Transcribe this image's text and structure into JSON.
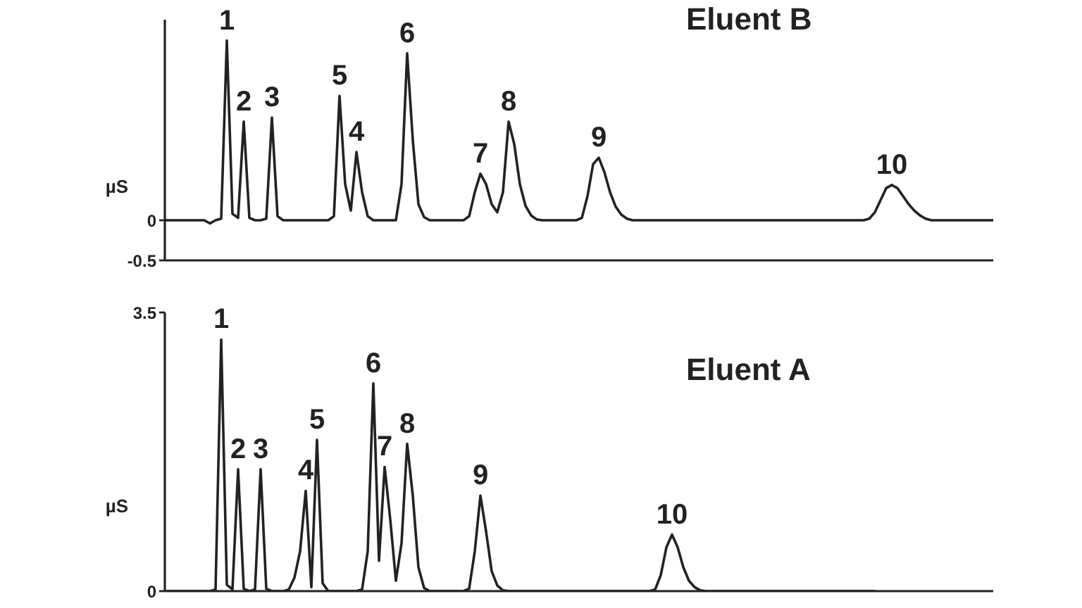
{
  "chart_data": [
    {
      "type": "line",
      "title": "Eluent B",
      "ylabel": "µS",
      "categories": [
        null,
        null,
        null,
        null,
        null,
        null,
        null,
        null,
        null,
        null,
        null,
        null,
        null,
        null,
        null,
        null,
        null,
        null,
        null,
        null,
        null,
        null,
        null,
        null,
        null,
        null,
        null,
        null,
        null,
        null,
        null,
        null,
        null,
        null,
        null,
        null,
        null,
        null,
        null,
        null,
        null,
        null,
        null,
        null,
        null,
        null,
        null,
        null,
        null,
        null,
        null,
        null,
        null,
        null,
        null,
        null,
        null,
        null,
        null,
        null,
        null,
        null,
        null,
        null,
        null,
        null,
        null,
        null,
        null,
        null,
        null,
        null,
        null,
        null,
        null,
        null,
        null,
        null,
        null,
        null,
        null,
        null,
        null,
        null,
        null,
        null,
        null,
        null,
        null,
        null,
        null,
        null,
        null,
        null,
        null,
        null,
        null,
        null,
        null,
        null,
        null,
        null,
        null,
        null,
        null,
        null,
        null,
        null,
        null,
        null,
        null,
        null,
        null,
        null,
        null,
        null,
        null,
        null,
        null,
        null,
        null,
        null,
        null,
        null,
        null,
        null,
        null,
        null,
        null,
        null,
        null,
        null,
        null,
        null,
        null,
        null,
        null,
        null,
        null,
        null,
        null,
        null,
        null,
        null,
        null,
        null,
        null,
        null
      ],
      "series": [
        {
          "color": "#222222",
          "values": [
            0,
            0,
            0,
            0,
            0,
            0,
            0,
            0,
            -0.04,
            0,
            0.02,
            2.24,
            0.08,
            0.03,
            1.23,
            0.03,
            0,
            0,
            0.02,
            1.28,
            0.05,
            0,
            0,
            0,
            0,
            0,
            0,
            0,
            0,
            0,
            0.05,
            1.55,
            0.45,
            0.12,
            0.85,
            0.35,
            0.05,
            0,
            0,
            0,
            0,
            0,
            0.45,
            2.08,
            1.0,
            0.2,
            0.04,
            0,
            0,
            0,
            0,
            0,
            0,
            0,
            0.05,
            0.35,
            0.58,
            0.45,
            0.2,
            0.1,
            0.35,
            1.23,
            0.95,
            0.45,
            0.18,
            0.06,
            0.01,
            0,
            0,
            0,
            0,
            0,
            0,
            0,
            0.03,
            0.3,
            0.7,
            0.78,
            0.6,
            0.35,
            0.17,
            0.07,
            0.02,
            0,
            0,
            0,
            0,
            0,
            0,
            0,
            0,
            0,
            0,
            0,
            0,
            0,
            0,
            0,
            0,
            0,
            0,
            0,
            0,
            0,
            0,
            0,
            0,
            0,
            0,
            0,
            0,
            0,
            0,
            0,
            0,
            0,
            0,
            0,
            0,
            0,
            0,
            0,
            0,
            0,
            0,
            0.02,
            0.1,
            0.25,
            0.4,
            0.44,
            0.4,
            0.3,
            0.2,
            0.12,
            0.06,
            0.02,
            0,
            0,
            0,
            0,
            0,
            0,
            0,
            0,
            0,
            0,
            0,
            0
          ]
        }
      ],
      "annotations": [
        {
          "text": "1",
          "y": 2.24
        },
        {
          "text": "2",
          "y": 1.23
        },
        {
          "text": "3",
          "y": 1.28
        },
        {
          "text": "5",
          "y": 1.55
        },
        {
          "text": "4",
          "y": 0.85
        },
        {
          "text": "6",
          "y": 2.08
        },
        {
          "text": "7",
          "y": 0.58
        },
        {
          "text": "8",
          "y": 1.23
        },
        {
          "text": "9",
          "y": 0.78
        },
        {
          "text": "10",
          "y": 0.44
        }
      ],
      "ylim": [
        -0.5,
        2.5
      ],
      "yticks": [
        -0.5,
        0
      ],
      "tick_labels": "y"
    },
    {
      "type": "line",
      "title": "Eluent A",
      "ylabel": "µS",
      "categories": [
        null,
        null,
        null,
        null,
        null,
        null,
        null,
        null,
        null,
        null,
        null,
        null,
        null,
        null,
        null,
        null,
        null,
        null,
        null,
        null,
        null,
        null,
        null,
        null,
        null,
        null,
        null,
        null,
        null,
        null,
        null,
        null,
        null,
        null,
        null,
        null,
        null,
        null,
        null,
        null,
        null,
        null,
        null,
        null,
        null,
        null,
        null,
        null,
        null,
        null,
        null,
        null,
        null,
        null,
        null,
        null,
        null,
        null,
        null,
        null,
        null,
        null,
        null,
        null,
        null,
        null,
        null,
        null,
        null,
        null,
        null,
        null,
        null,
        null,
        null,
        null,
        null,
        null,
        null,
        null,
        null,
        null,
        null,
        null,
        null,
        null,
        null,
        null,
        null,
        null,
        null,
        null,
        null,
        null,
        null,
        null,
        null,
        null,
        null,
        null,
        null,
        null,
        null,
        null,
        null,
        null,
        null,
        null,
        null,
        null,
        null,
        null,
        null,
        null,
        null,
        null,
        null,
        null,
        null,
        null,
        null,
        null,
        null,
        null,
        null,
        null,
        null,
        null,
        null,
        null,
        null,
        null,
        null,
        null,
        null,
        null,
        null,
        null,
        null,
        null,
        null,
        null,
        null,
        null,
        null,
        null,
        null,
        null
      ],
      "series": [
        {
          "color": "#222222",
          "values": [
            0,
            0,
            0,
            0,
            0,
            0,
            0,
            0,
            0,
            0.02,
            3.16,
            0.08,
            0.02,
            1.53,
            0.03,
            0,
            0.02,
            1.53,
            0.03,
            0,
            0,
            0,
            0.02,
            0.17,
            0.5,
            1.26,
            0.05,
            1.9,
            0.1,
            0,
            0,
            0,
            0,
            0,
            0,
            0.02,
            0.5,
            2.61,
            0.38,
            1.56,
            0.9,
            0.13,
            0.6,
            1.85,
            1.2,
            0.3,
            0.04,
            0,
            0,
            0,
            0,
            0,
            0,
            0,
            0.03,
            0.5,
            1.2,
            0.75,
            0.25,
            0.07,
            0.01,
            0,
            0,
            0,
            0,
            0,
            0,
            0,
            0,
            0,
            0,
            0,
            0,
            0,
            0,
            0,
            0,
            0,
            0,
            0,
            0,
            0,
            0,
            0,
            0,
            0,
            0,
            0.02,
            0.2,
            0.55,
            0.71,
            0.55,
            0.3,
            0.13,
            0.05,
            0.01,
            0,
            0,
            0,
            0,
            0,
            0,
            0,
            0,
            0,
            0,
            0,
            0,
            0,
            0,
            0,
            0,
            0,
            0,
            0,
            0,
            0,
            0,
            0,
            0,
            0,
            0,
            0,
            0,
            0,
            0,
            0,
            null,
            null,
            null,
            null,
            null,
            null,
            null,
            null,
            null,
            null,
            null,
            null,
            null,
            null,
            null,
            null,
            null,
            null,
            null,
            null,
            null
          ]
        }
      ],
      "annotations": [
        {
          "text": "1",
          "y": 3.16
        },
        {
          "text": "2",
          "y": 1.53
        },
        {
          "text": "3",
          "y": 1.53
        },
        {
          "text": "4",
          "y": 1.26
        },
        {
          "text": "5",
          "y": 1.9
        },
        {
          "text": "6",
          "y": 2.61
        },
        {
          "text": "7",
          "y": 1.56
        },
        {
          "text": "8",
          "y": 1.85
        },
        {
          "text": "9",
          "y": 1.2
        },
        {
          "text": "10",
          "y": 0.71
        }
      ],
      "ylim": [
        0,
        3.5
      ],
      "yticks": [
        0,
        3.5
      ],
      "tick_labels": "y"
    }
  ]
}
